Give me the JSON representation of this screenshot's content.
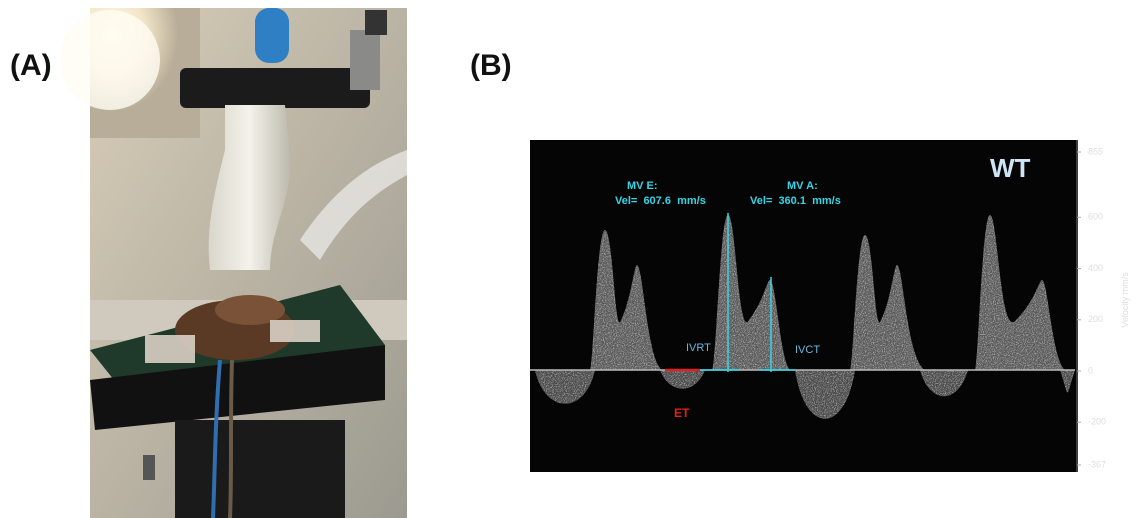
{
  "panels": [
    {
      "label": "(A)"
    },
    {
      "label": "(B)",
      "group": "WT",
      "measurements": [
        {
          "name": "MV E:",
          "reading": "Vel=  607.6  mm/s"
        },
        {
          "name": "MV A:",
          "reading": "Vel=  360.1  mm/s"
        }
      ],
      "intervals": [
        "IVRT",
        "IVCT",
        "ET"
      ],
      "axis": {
        "label": "Velocity mm/s",
        "ticks": [
          855,
          600,
          400,
          200,
          0,
          -200,
          -367
        ]
      }
    }
  ]
}
